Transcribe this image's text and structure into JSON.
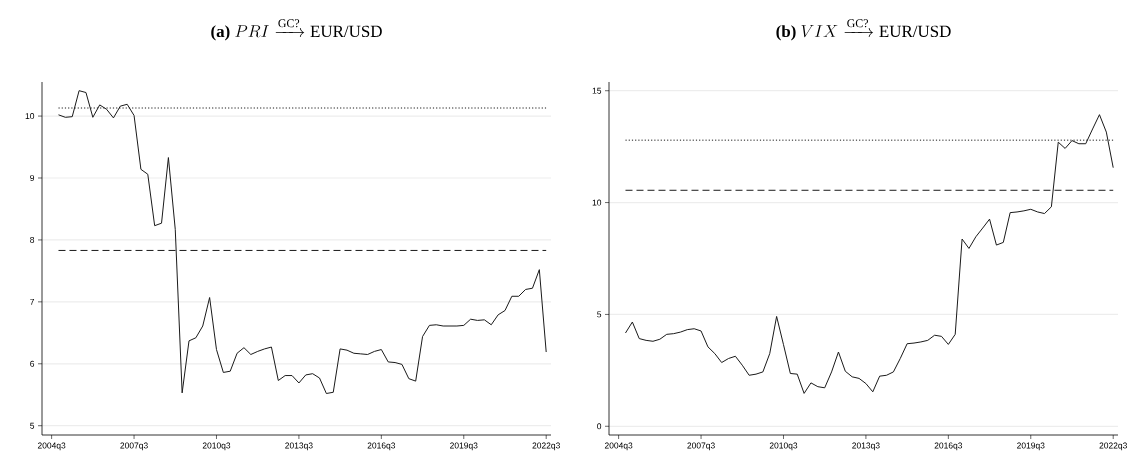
{
  "chart_data": [
    {
      "type": "line",
      "title": "\\textbf{(a)}\\ PRI\\xrightarrow{\\text{GC?}}\\text{EUR/USD}",
      "grid": "y",
      "categories": [
        "2004q3",
        null,
        null,
        null,
        null,
        null,
        null,
        null,
        null,
        null,
        null,
        null,
        "2007q3",
        null,
        null,
        null,
        null,
        null,
        null,
        null,
        null,
        null,
        null,
        null,
        "2010q3",
        null,
        null,
        null,
        null,
        null,
        null,
        null,
        null,
        null,
        null,
        null,
        "2013q3",
        null,
        null,
        null,
        null,
        null,
        null,
        null,
        null,
        null,
        null,
        null,
        "2016q3",
        null,
        null,
        null,
        null,
        null,
        null,
        null,
        null,
        null,
        null,
        null,
        "2019q3",
        null,
        null,
        null,
        null,
        null,
        null,
        null,
        null,
        null,
        null,
        null,
        "2022q3"
      ],
      "series": [
        {
          "color": "#1a1a1a",
          "line_style": "solid",
          "values": [
            null,
            10.02,
            9.98,
            9.99,
            10.41,
            10.38,
            9.98,
            10.18,
            10.11,
            9.97,
            10.16,
            10.19,
            10.01,
            9.14,
            9.06,
            8.23,
            8.27,
            9.33,
            8.17,
            5.53,
            6.37,
            6.42,
            6.61,
            7.07,
            6.23,
            5.86,
            5.88,
            6.17,
            6.26,
            6.15,
            6.2,
            6.24,
            6.27,
            5.73,
            5.81,
            5.81,
            5.69,
            5.82,
            5.84,
            5.77,
            5.52,
            5.54,
            6.24,
            6.22,
            6.17,
            6.16,
            6.15,
            6.2,
            6.23,
            6.03,
            6.02,
            5.99,
            5.76,
            5.72,
            6.44,
            6.62,
            6.63,
            6.61,
            6.61,
            6.61,
            6.62,
            6.72,
            6.7,
            6.71,
            6.63,
            6.79,
            6.86,
            7.09,
            7.09,
            7.2,
            7.22,
            7.52,
            6.19
          ]
        }
      ],
      "ref_lines": [
        {
          "axis": "y",
          "value": 10.13,
          "color": "#1a1a1a",
          "line_style": "dotted"
        },
        {
          "axis": "y",
          "value": 7.83,
          "color": "#1a1a1a",
          "line_style": "dashed"
        }
      ],
      "ylim": [
        4.85,
        10.55
      ],
      "yticks": [
        5,
        6,
        7,
        8,
        9,
        10
      ]
    },
    {
      "type": "line",
      "title": "\\textbf{(b)}\\ VIX\\xrightarrow{\\text{GC?}}\\text{EUR/USD}",
      "grid": "y",
      "categories": [
        "2004q3",
        null,
        null,
        null,
        null,
        null,
        null,
        null,
        null,
        null,
        null,
        null,
        "2007q3",
        null,
        null,
        null,
        null,
        null,
        null,
        null,
        null,
        null,
        null,
        null,
        "2010q3",
        null,
        null,
        null,
        null,
        null,
        null,
        null,
        null,
        null,
        null,
        null,
        "2013q3",
        null,
        null,
        null,
        null,
        null,
        null,
        null,
        null,
        null,
        null,
        null,
        "2016q3",
        null,
        null,
        null,
        null,
        null,
        null,
        null,
        null,
        null,
        null,
        null,
        "2019q3",
        null,
        null,
        null,
        null,
        null,
        null,
        null,
        null,
        null,
        null,
        null,
        "2022q3"
      ],
      "series": [
        {
          "color": "#1a1a1a",
          "line_style": "solid",
          "values": [
            null,
            4.17,
            4.66,
            3.92,
            3.84,
            3.8,
            3.89,
            4.11,
            4.14,
            4.21,
            4.32,
            4.36,
            4.26,
            3.55,
            3.25,
            2.85,
            3.03,
            3.13,
            2.73,
            2.28,
            2.33,
            2.43,
            3.25,
            4.91,
            3.65,
            2.36,
            2.33,
            1.47,
            1.94,
            1.77,
            1.72,
            2.43,
            3.32,
            2.46,
            2.21,
            2.14,
            1.91,
            1.54,
            2.24,
            2.28,
            2.43,
            3.03,
            3.69,
            3.72,
            3.77,
            3.84,
            4.07,
            4.02,
            3.66,
            4.11,
            8.37,
            7.95,
            8.47,
            8.86,
            9.26,
            8.1,
            8.22,
            9.55,
            9.58,
            9.63,
            9.7,
            9.58,
            9.51,
            9.81,
            12.7,
            12.42,
            12.77,
            12.63,
            12.63,
            13.29,
            13.93,
            13.15,
            11.56
          ]
        }
      ],
      "ref_lines": [
        {
          "axis": "y",
          "value": 12.79,
          "color": "#1a1a1a",
          "line_style": "dotted"
        },
        {
          "axis": "y",
          "value": 10.55,
          "color": "#1a1a1a",
          "line_style": "dashed"
        }
      ],
      "ylim": [
        -0.39,
        15.39
      ],
      "yticks": [
        0,
        5,
        10,
        15
      ]
    }
  ]
}
